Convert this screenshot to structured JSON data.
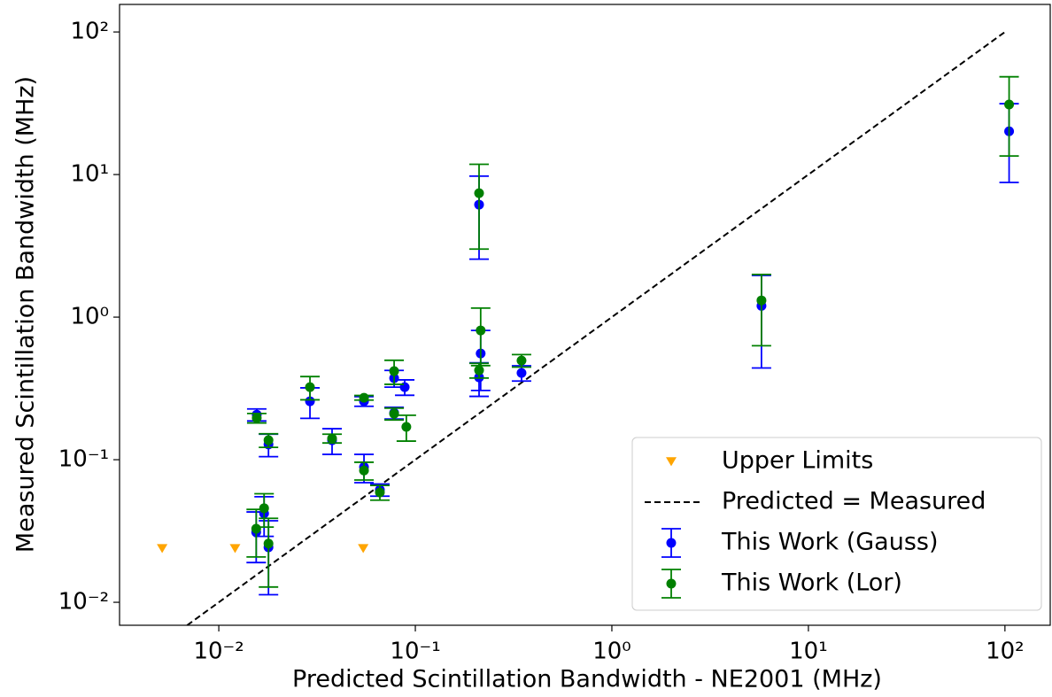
{
  "chart_data": {
    "type": "scatter",
    "xlabel": "Predicted Scintillation Bandwidth - NE2001 (MHz)",
    "ylabel": "Measured Scintillation Bandwidth (MHz)",
    "xscale": "log",
    "yscale": "log",
    "xlim": [
      0.003126,
      170
    ],
    "ylim": [
      0.0069,
      156
    ],
    "xticks": [
      {
        "value": 0.01,
        "label": "10⁻²"
      },
      {
        "value": 0.1,
        "label": "10⁻¹"
      },
      {
        "value": 1,
        "label": "10⁰"
      },
      {
        "value": 10,
        "label": "10¹"
      },
      {
        "value": 100,
        "label": "10²"
      }
    ],
    "yticks": [
      {
        "value": 0.01,
        "label": "10⁻²"
      },
      {
        "value": 0.1,
        "label": "10⁻¹"
      },
      {
        "value": 1,
        "label": "10⁰"
      },
      {
        "value": 10,
        "label": "10¹"
      },
      {
        "value": 100,
        "label": "10²"
      }
    ],
    "legend": "lower right",
    "series": [
      {
        "name": "Upper Limits",
        "kind": "triangles",
        "color": "orange",
        "x": [
          0.00515,
          0.0121,
          0.0543
        ],
        "y": [
          0.0239,
          0.0239,
          0.0239
        ]
      },
      {
        "name": "Predicted = Measured",
        "kind": "dashed-line",
        "color": "black",
        "x": [
          0.0069,
          100
        ],
        "y": [
          0.0069,
          100
        ]
      },
      {
        "name": "This Work (Gauss)",
        "kind": "errorbar",
        "color": "blue",
        "x": [
          0.0156,
          0.0155,
          0.017,
          0.0179,
          0.0179,
          0.0291,
          0.0377,
          0.0548,
          0.0548,
          0.066,
          0.078,
          0.078,
          0.0883,
          0.211,
          0.215,
          0.211,
          0.347,
          5.77,
          105
        ],
        "y": [
          0.207,
          0.031,
          0.042,
          0.128,
          0.0243,
          0.257,
          0.137,
          0.257,
          0.089,
          0.0615,
          0.373,
          0.213,
          0.323,
          6.15,
          0.556,
          0.378,
          0.406,
          1.2,
          20.1
        ],
        "yerr": [
          0.02,
          0.012,
          0.013,
          0.023,
          0.013,
          0.062,
          0.028,
          0.02,
          0.02,
          0.006,
          0.05,
          0.02,
          0.04,
          3.6,
          0.25,
          0.1,
          0.05,
          0.76,
          11.3
        ]
      },
      {
        "name": "This Work (Lor)",
        "kind": "errorbar",
        "color": "green",
        "x": [
          0.0156,
          0.0155,
          0.017,
          0.0179,
          0.0179,
          0.0291,
          0.0377,
          0.0548,
          0.0548,
          0.066,
          0.078,
          0.078,
          0.09,
          0.211,
          0.215,
          0.211,
          0.347,
          5.77,
          105
        ],
        "y": [
          0.196,
          0.0328,
          0.0457,
          0.137,
          0.0258,
          0.323,
          0.141,
          0.272,
          0.084,
          0.059,
          0.418,
          0.21,
          0.17,
          7.4,
          0.807,
          0.424,
          0.496,
          1.31,
          31
        ],
        "yerr": [
          0.015,
          0.012,
          0.012,
          0.015,
          0.013,
          0.06,
          0.01,
          0.01,
          0.012,
          0.007,
          0.08,
          0.02,
          0.035,
          4.4,
          0.35,
          0.05,
          0.05,
          0.68,
          17.5
        ]
      }
    ]
  }
}
